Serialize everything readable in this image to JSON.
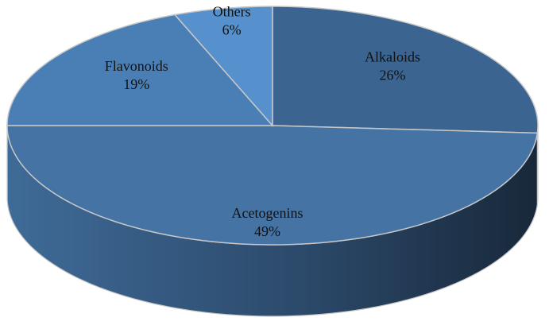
{
  "chart_data": {
    "type": "pie",
    "categories": [
      "Alkaloids",
      "Acetogenins",
      "Flavonoids",
      "Others"
    ],
    "values": [
      26,
      49,
      19,
      6
    ],
    "value_labels": [
      "26%",
      "49%",
      "19%",
      "6%"
    ],
    "colors": [
      "#3b6590",
      "#4473a4",
      "#4a7fb6",
      "#5691cd"
    ],
    "three_d": true
  }
}
